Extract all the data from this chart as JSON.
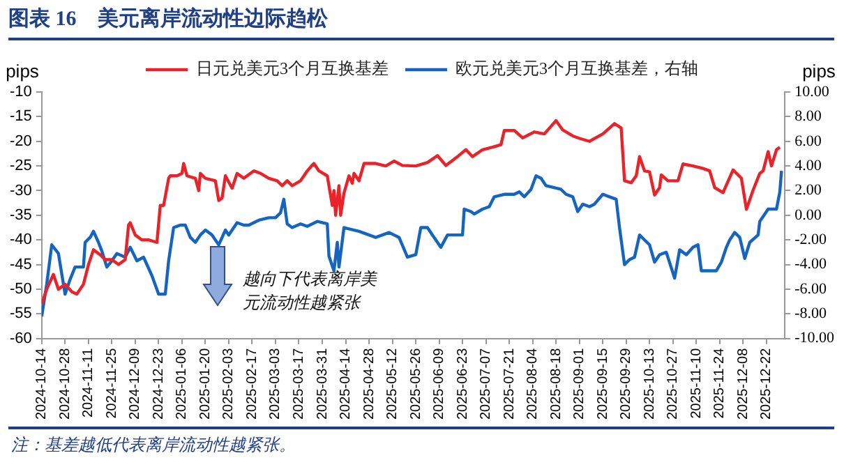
{
  "chart_data": {
    "type": "line",
    "title": "图表 16　美元离岸流动性边际趋松",
    "ylabel": "pips",
    "y2label": "pips",
    "legend": "top",
    "grid": false,
    "marker": "none",
    "line_style": "solid",
    "annotations": [
      "越向下代表离岸美元流动性越紧张",
      "注：基差越低代表离岸流动性越紧张。"
    ],
    "xlim": [
      "2024-10-14",
      "2026-01-02"
    ],
    "xticks": [
      "2024-10-14",
      "2024-10-28",
      "2024-11-11",
      "2024-11-25",
      "2024-12-09",
      "2024-12-23",
      "2025-01-06",
      "2025-01-20",
      "2025-02-03",
      "2025-02-17",
      "2025-03-03",
      "2025-03-17",
      "2025-03-31",
      "2025-04-14",
      "2025-04-28",
      "2025-05-12",
      "2025-05-26",
      "2025-06-09",
      "2025-06-23",
      "2025-07-07",
      "2025-07-21",
      "2025-08-04",
      "2025-08-18",
      "2025-09-01",
      "2025-09-15",
      "2025-09-29",
      "2025-10-13",
      "2025-10-27",
      "2025-11-10",
      "2025-11-24",
      "2025-12-08",
      "2025-12-22"
    ],
    "ylim": [
      -60,
      -10
    ],
    "yticks": [
      -10,
      -15,
      -20,
      -25,
      -30,
      -35,
      -40,
      -45,
      -50,
      -55,
      -60
    ],
    "y2lim": [
      -10,
      10
    ],
    "y2ticks": [
      {
        "value": 10,
        "label": "10.00"
      },
      {
        "value": 8,
        "label": "8.00"
      },
      {
        "value": 6,
        "label": "6.00"
      },
      {
        "value": 4,
        "label": "4.00"
      },
      {
        "value": 2,
        "label": "2.00"
      },
      {
        "value": 0,
        "label": "0.00"
      },
      {
        "value": -2,
        "label": "-2.00"
      },
      {
        "value": -4,
        "label": "-4.00"
      },
      {
        "value": -6,
        "label": "-6.00"
      },
      {
        "value": -8,
        "label": "-8.00"
      },
      {
        "value": -10,
        "label": "-10.00"
      }
    ],
    "series": [
      {
        "name": "日元兑美元3个月互换基差",
        "color": "#e8232a",
        "x": [
          "2024-10-14",
          "2024-10-17",
          "2024-10-21",
          "2024-10-24",
          "2024-10-28",
          "2024-11-01",
          "2024-11-04",
          "2024-11-08",
          "2024-11-11",
          "2024-11-14",
          "2024-11-18",
          "2024-11-21",
          "2024-11-25",
          "2024-11-29",
          "2024-12-03",
          "2024-12-05",
          "2024-12-06",
          "2024-12-09",
          "2024-12-13",
          "2024-12-17",
          "2024-12-22",
          "2024-12-24",
          "2024-12-26",
          "2024-12-29",
          "2024-12-30",
          "2025-01-03",
          "2025-01-06",
          "2025-01-07",
          "2025-01-09",
          "2025-01-14",
          "2025-01-16",
          "2025-01-17",
          "2025-01-20",
          "2025-01-26",
          "2025-01-28",
          "2025-01-30",
          "2025-02-01",
          "2025-02-05",
          "2025-02-08",
          "2025-02-12",
          "2025-02-18",
          "2025-02-22",
          "2025-02-27",
          "2025-03-04",
          "2025-03-07",
          "2025-03-10",
          "2025-03-13",
          "2025-03-18",
          "2025-03-22",
          "2025-03-26",
          "2025-03-29",
          "2025-04-03",
          "2025-04-06",
          "2025-04-07",
          "2025-04-08",
          "2025-04-10",
          "2025-04-11",
          "2025-04-13",
          "2025-04-16",
          "2025-04-18",
          "2025-04-19",
          "2025-04-22",
          "2025-04-25",
          "2025-05-02",
          "2025-05-08",
          "2025-05-13",
          "2025-05-18",
          "2025-05-26",
          "2025-06-02",
          "2025-06-08",
          "2025-06-13",
          "2025-06-20",
          "2025-06-25",
          "2025-06-29",
          "2025-07-05",
          "2025-07-11",
          "2025-07-16",
          "2025-07-18",
          "2025-07-24",
          "2025-07-29",
          "2025-08-05",
          "2025-08-11",
          "2025-08-18",
          "2025-08-22",
          "2025-08-28",
          "2025-09-01",
          "2025-09-07",
          "2025-09-15",
          "2025-09-22",
          "2025-09-26",
          "2025-09-28",
          "2025-10-02",
          "2025-10-05",
          "2025-10-07",
          "2025-10-10",
          "2025-10-13",
          "2025-10-16",
          "2025-10-19",
          "2025-10-20",
          "2025-10-24",
          "2025-10-30",
          "2025-11-02",
          "2025-11-08",
          "2025-11-14",
          "2025-11-18",
          "2025-11-21",
          "2025-11-26",
          "2025-12-02",
          "2025-12-07",
          "2025-12-10",
          "2025-12-14",
          "2025-12-18",
          "2025-12-20",
          "2025-12-23",
          "2025-12-25",
          "2025-12-28",
          "2025-12-30"
        ],
        "values": [
          -53,
          -50,
          -47,
          -50,
          -49,
          -50.5,
          -51,
          -49,
          -45,
          -42,
          -43,
          -44,
          -44,
          -45,
          -44,
          -37,
          -36.5,
          -39,
          -40,
          -40,
          -40.5,
          -33,
          -33,
          -27.5,
          -27,
          -27,
          -26.5,
          -24.5,
          -27,
          -27.5,
          -30,
          -26.5,
          -27.5,
          -28,
          -32,
          -31.5,
          -27,
          -29.5,
          -26.5,
          -27.5,
          -26,
          -26.5,
          -27.5,
          -28,
          -29,
          -28,
          -29,
          -28,
          -26,
          -24.5,
          -26,
          -27,
          -33,
          -30,
          -35,
          -29,
          -35,
          -30.5,
          -27,
          -28.5,
          -26.5,
          -28,
          -24.5,
          -24.5,
          -25,
          -24,
          -24.9,
          -25,
          -24.3,
          -22.9,
          -24.9,
          -23.1,
          -21.7,
          -23.1,
          -21.7,
          -21.2,
          -20.7,
          -17.8,
          -17.8,
          -19.3,
          -18.1,
          -18.5,
          -15.8,
          -17.7,
          -18.9,
          -19.4,
          -20,
          -18.5,
          -16.4,
          -17.3,
          -28,
          -28.4,
          -27,
          -23.1,
          -26,
          -26.2,
          -30.9,
          -29.4,
          -26.8,
          -28,
          -28,
          -24.6,
          -25,
          -25.5,
          -26,
          -29.4,
          -30.4,
          -25.8,
          -27.5,
          -33.8,
          -29.9,
          -26.5,
          -26,
          -22.1,
          -25,
          -21.7,
          -21.2
        ]
      },
      {
        "name": "欧元兑美元3个月互换基差，右轴",
        "color": "#1565c0",
        "axis": "y2",
        "x": [
          "2024-10-14",
          "2024-10-17",
          "2024-10-20",
          "2024-10-24",
          "2024-10-28",
          "2024-10-31",
          "2024-11-03",
          "2024-11-08",
          "2024-11-09",
          "2024-11-12",
          "2024-11-14",
          "2024-11-17",
          "2024-11-19",
          "2024-11-22",
          "2024-11-25",
          "2024-11-28",
          "2024-12-03",
          "2024-12-06",
          "2024-12-10",
          "2024-12-14",
          "2024-12-19",
          "2024-12-23",
          "2024-12-27",
          "2024-12-29",
          "2025-01-01",
          "2025-01-05",
          "2025-01-08",
          "2025-01-11",
          "2025-01-14",
          "2025-01-17",
          "2025-01-20",
          "2025-01-24",
          "2025-01-28",
          "2025-02-01",
          "2025-02-03",
          "2025-02-08",
          "2025-02-12",
          "2025-02-15",
          "2025-02-21",
          "2025-02-27",
          "2025-03-03",
          "2025-03-06",
          "2025-03-08",
          "2025-03-10",
          "2025-03-13",
          "2025-03-18",
          "2025-03-22",
          "2025-03-28",
          "2025-04-03",
          "2025-04-04",
          "2025-04-07",
          "2025-04-09",
          "2025-04-10",
          "2025-04-13",
          "2025-04-22",
          "2025-05-02",
          "2025-05-10",
          "2025-05-16",
          "2025-05-21",
          "2025-05-26",
          "2025-05-29",
          "2025-06-02",
          "2025-06-05",
          "2025-06-10",
          "2025-06-14",
          "2025-06-20",
          "2025-06-23",
          "2025-06-24",
          "2025-06-28",
          "2025-06-30",
          "2025-07-05",
          "2025-07-09",
          "2025-07-12",
          "2025-07-18",
          "2025-07-24",
          "2025-07-27",
          "2025-07-30",
          "2025-08-03",
          "2025-08-06",
          "2025-08-09",
          "2025-08-12",
          "2025-08-18",
          "2025-08-21",
          "2025-08-24",
          "2025-08-28",
          "2025-08-31",
          "2025-09-03",
          "2025-09-07",
          "2025-09-10",
          "2025-09-15",
          "2025-09-19",
          "2025-09-23",
          "2025-09-25",
          "2025-09-28",
          "2025-10-01",
          "2025-10-04",
          "2025-10-07",
          "2025-10-10",
          "2025-10-13",
          "2025-10-16",
          "2025-10-19",
          "2025-10-23",
          "2025-10-28",
          "2025-10-31",
          "2025-11-04",
          "2025-11-08",
          "2025-11-11",
          "2025-11-13",
          "2025-11-22",
          "2025-11-25",
          "2025-11-28",
          "2025-11-30",
          "2025-12-03",
          "2025-12-06",
          "2025-12-09",
          "2025-12-12",
          "2025-12-17",
          "2025-12-18",
          "2025-12-23",
          "2025-12-28",
          "2025-12-30",
          "2025-12-31"
        ],
        "values": [
          -8.2,
          -5.6,
          -2.4,
          -3.1,
          -6.4,
          -5.2,
          -4.2,
          -4.2,
          -2.2,
          -1.8,
          -1.3,
          -2.2,
          -2.9,
          -4.2,
          -3.7,
          -3.1,
          -3.4,
          -2.6,
          -3.7,
          -3.4,
          -4.9,
          -6.4,
          -6.4,
          -3.7,
          -1,
          -0.8,
          -0.8,
          -1.8,
          -2.2,
          -1.6,
          -1.2,
          -1.6,
          -2.4,
          -1.2,
          -1.6,
          -0.6,
          -0.8,
          -0.8,
          -0.4,
          -0.2,
          -0.2,
          0.2,
          1.3,
          -0.7,
          -1,
          -0.7,
          -0.9,
          -0.5,
          -0.7,
          -3.3,
          -4.5,
          -2.2,
          -4.2,
          -1,
          -1.3,
          -1.8,
          -1.4,
          -1.8,
          -3.4,
          -3.2,
          -1,
          -1,
          -1.6,
          -2.6,
          -1.6,
          -1.6,
          -1.6,
          0.5,
          0.3,
          0.1,
          0.5,
          0.7,
          1.5,
          1.7,
          1.7,
          1.9,
          1.5,
          2.1,
          3.2,
          3,
          2.4,
          2.2,
          2.1,
          1.7,
          1.5,
          0.3,
          0.9,
          0.7,
          0.9,
          1.7,
          1.5,
          1.3,
          -1,
          -4,
          -3.6,
          -3.4,
          -1.6,
          -2,
          -2.4,
          -3.8,
          -3.2,
          -3,
          -5.1,
          -2.8,
          -3.2,
          -2.6,
          -2.4,
          -4.5,
          -4.5,
          -3.8,
          -2.6,
          -2,
          -1.4,
          -1.8,
          -3.5,
          -2.2,
          -1.6,
          -0.5,
          0.5,
          0.5,
          1.9,
          3.6
        ]
      }
    ]
  }
}
